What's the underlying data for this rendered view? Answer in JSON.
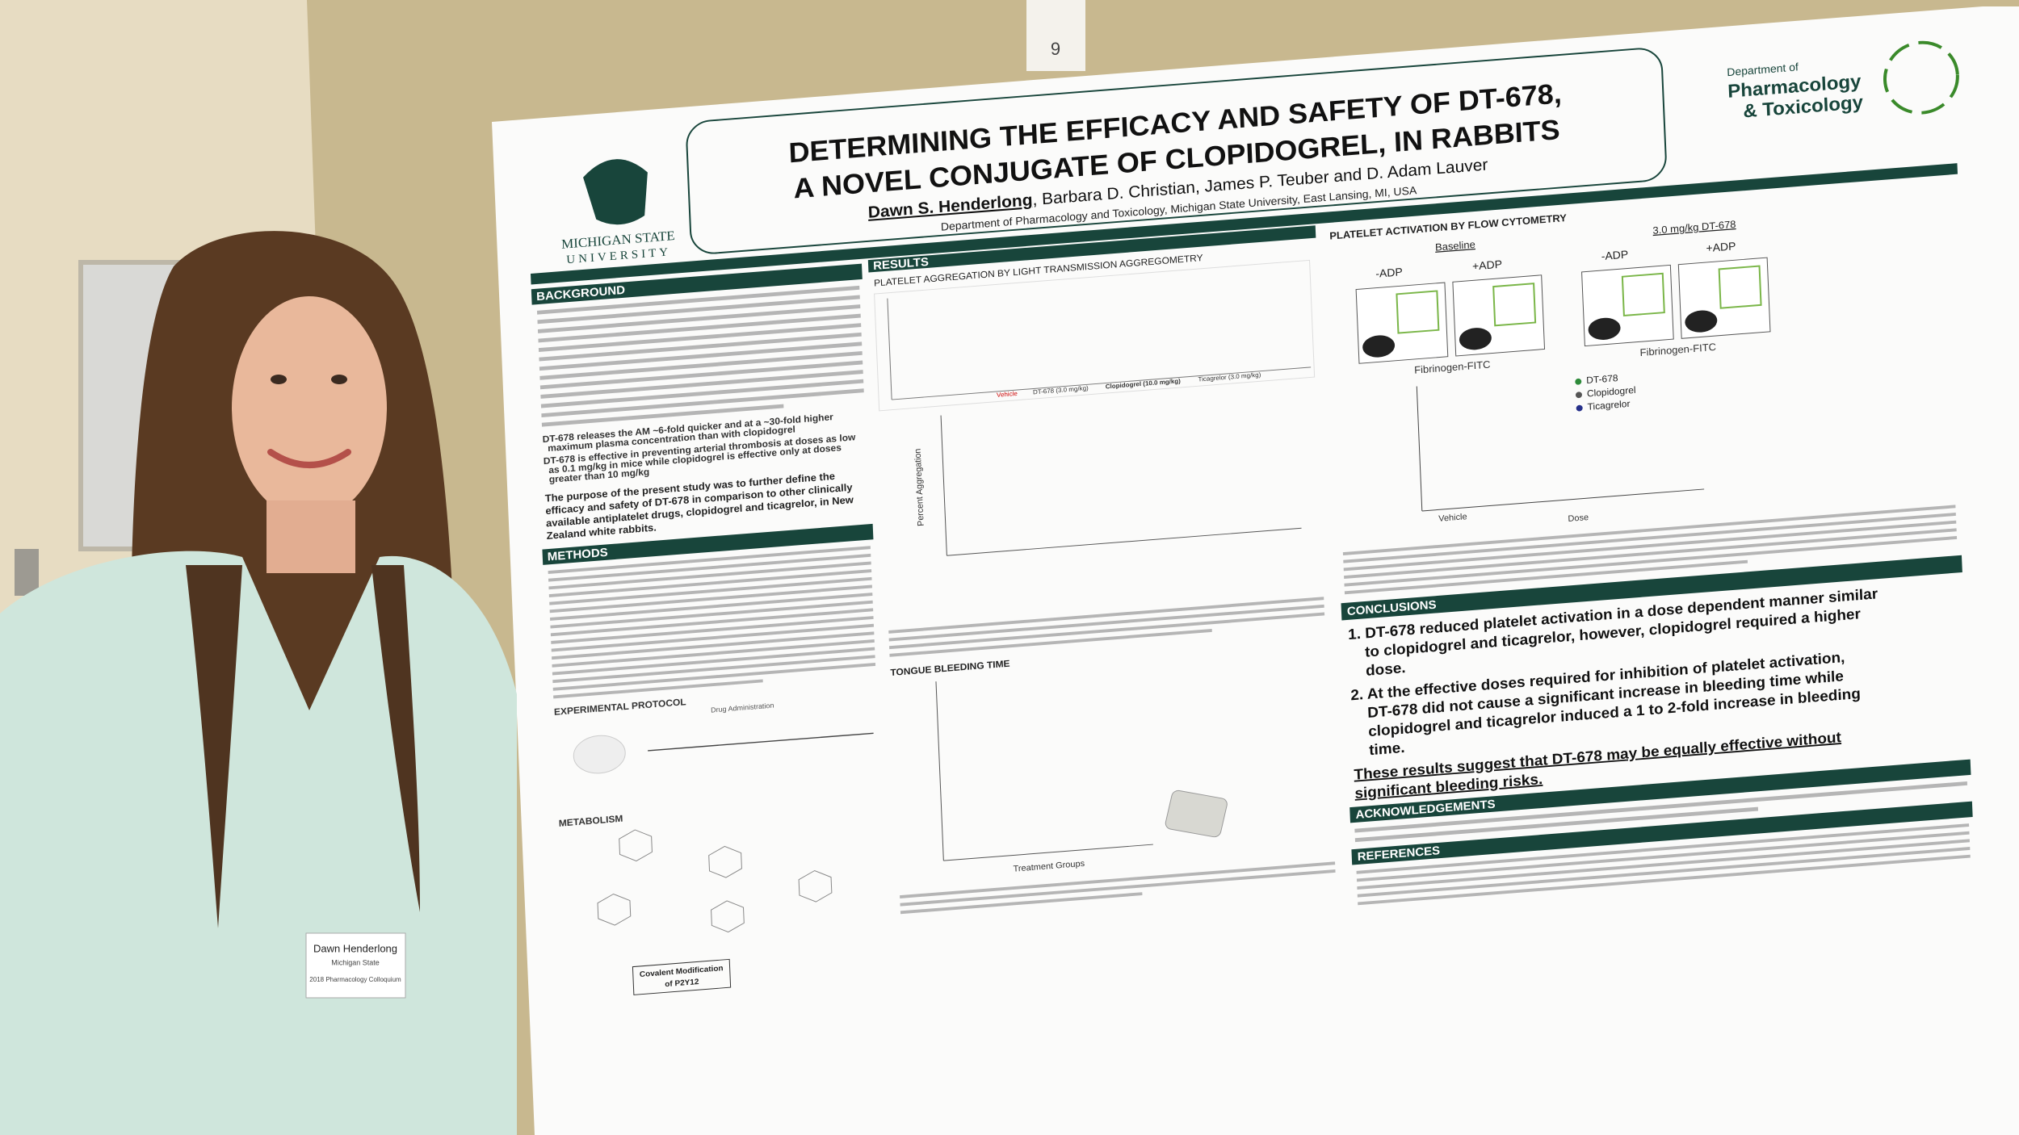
{
  "card_number": "9",
  "badge": {
    "name": "Dawn Henderlong",
    "affiliation": "Michigan State",
    "event": "2018 Pharmacology Colloquium"
  },
  "poster": {
    "university": [
      "MICHIGAN STATE",
      "UNIVERSITY"
    ],
    "title": [
      "DETERMINING THE EFFICACY AND SAFETY OF DT-678,",
      "A NOVEL CONJUGATE OF CLOPIDOGREL, IN RABBITS"
    ],
    "lead_author": "Dawn S. Henderlong",
    "other_authors": ", Barbara D. Christian, James P. Teuber and D. Adam Lauver",
    "affiliation": "Department of Pharmacology and Toxicology, Michigan State University, East Lansing, MI, USA",
    "department_logo": [
      "Department of",
      "Pharmacology",
      "& Toxicology"
    ],
    "background": {
      "heading": "BACKGROUND",
      "bullets": [
        [
          "DT-678 releases the AM ~6-fold quicker and at a ~30-fold higher",
          "maximum plasma concentration than with clopidogrel"
        ],
        [
          "DT-678 is effective in preventing arterial thrombosis at doses as low",
          "as 0.1 mg/kg in mice while clopidogrel is effective only at doses",
          "greater than 10 mg/kg"
        ]
      ],
      "purpose": [
        "The purpose of the present study was to further define the",
        "efficacy and safety of DT-678 in comparison to other clinically",
        "available antiplatelet drugs, clopidogrel and ticagrelor, in New",
        "Zealand white rabbits."
      ]
    },
    "methods": {
      "heading": "METHODS"
    },
    "protocol": {
      "heading": "EXPERIMENTAL PROTOCOL",
      "drug_label": "Drug Administration"
    },
    "metabolism": {
      "heading": "METABOLISM",
      "box": [
        "Covalent Modification",
        "of P2Y12"
      ]
    },
    "results": {
      "heading": "RESULTS",
      "aggregation_title": "PLATELET AGGREGATION BY LIGHT TRANSMISSION AGGREGOMETRY",
      "aggregation_ylabel": "Percent Aggregation",
      "tracing_legend": [
        "Vehicle",
        "DT-678 (3.0 mg/kg)",
        "Clopidogrel (10.0 mg/kg)",
        "Ticagrelor (3.0 mg/kg)"
      ],
      "bleeding_title": "TONGUE BLEEDING TIME",
      "bleeding_xlabel": "Treatment Groups"
    },
    "flow": {
      "heading": "PLATELET ACTIVATION BY FLOW CYTOMETRY",
      "panel_a": "Baseline",
      "panel_b": "3.0 mg/kg DT-678",
      "conditions": [
        "-ADP",
        "+ADP"
      ],
      "xlabel": "Fibrinogen-FITC",
      "legend": [
        "DT-678",
        "Clopidogrel",
        "Ticagrelor"
      ],
      "dose_labels": [
        "Vehicle",
        "Dose"
      ]
    },
    "conclusions": {
      "heading": "CONCLUSIONS",
      "items": [
        [
          "1. DT-678 reduced platelet activation in a dose dependent manner similar",
          "to clopidogrel and ticagrelor, however, clopidogrel required a higher",
          "dose."
        ],
        [
          "2. At the effective doses required for inhibition of platelet activation,",
          "DT-678 did not cause a significant increase in bleeding time while",
          "clopidogrel and ticagrelor induced a 1 to 2-fold increase in bleeding",
          "time."
        ]
      ],
      "summary": [
        "These results suggest that DT-678 may be equally effective without",
        "significant bleeding risks."
      ]
    },
    "acknowledgements": {
      "heading": "ACKNOWLEDGEMENTS"
    },
    "references": {
      "heading": "REFERENCES"
    }
  }
}
